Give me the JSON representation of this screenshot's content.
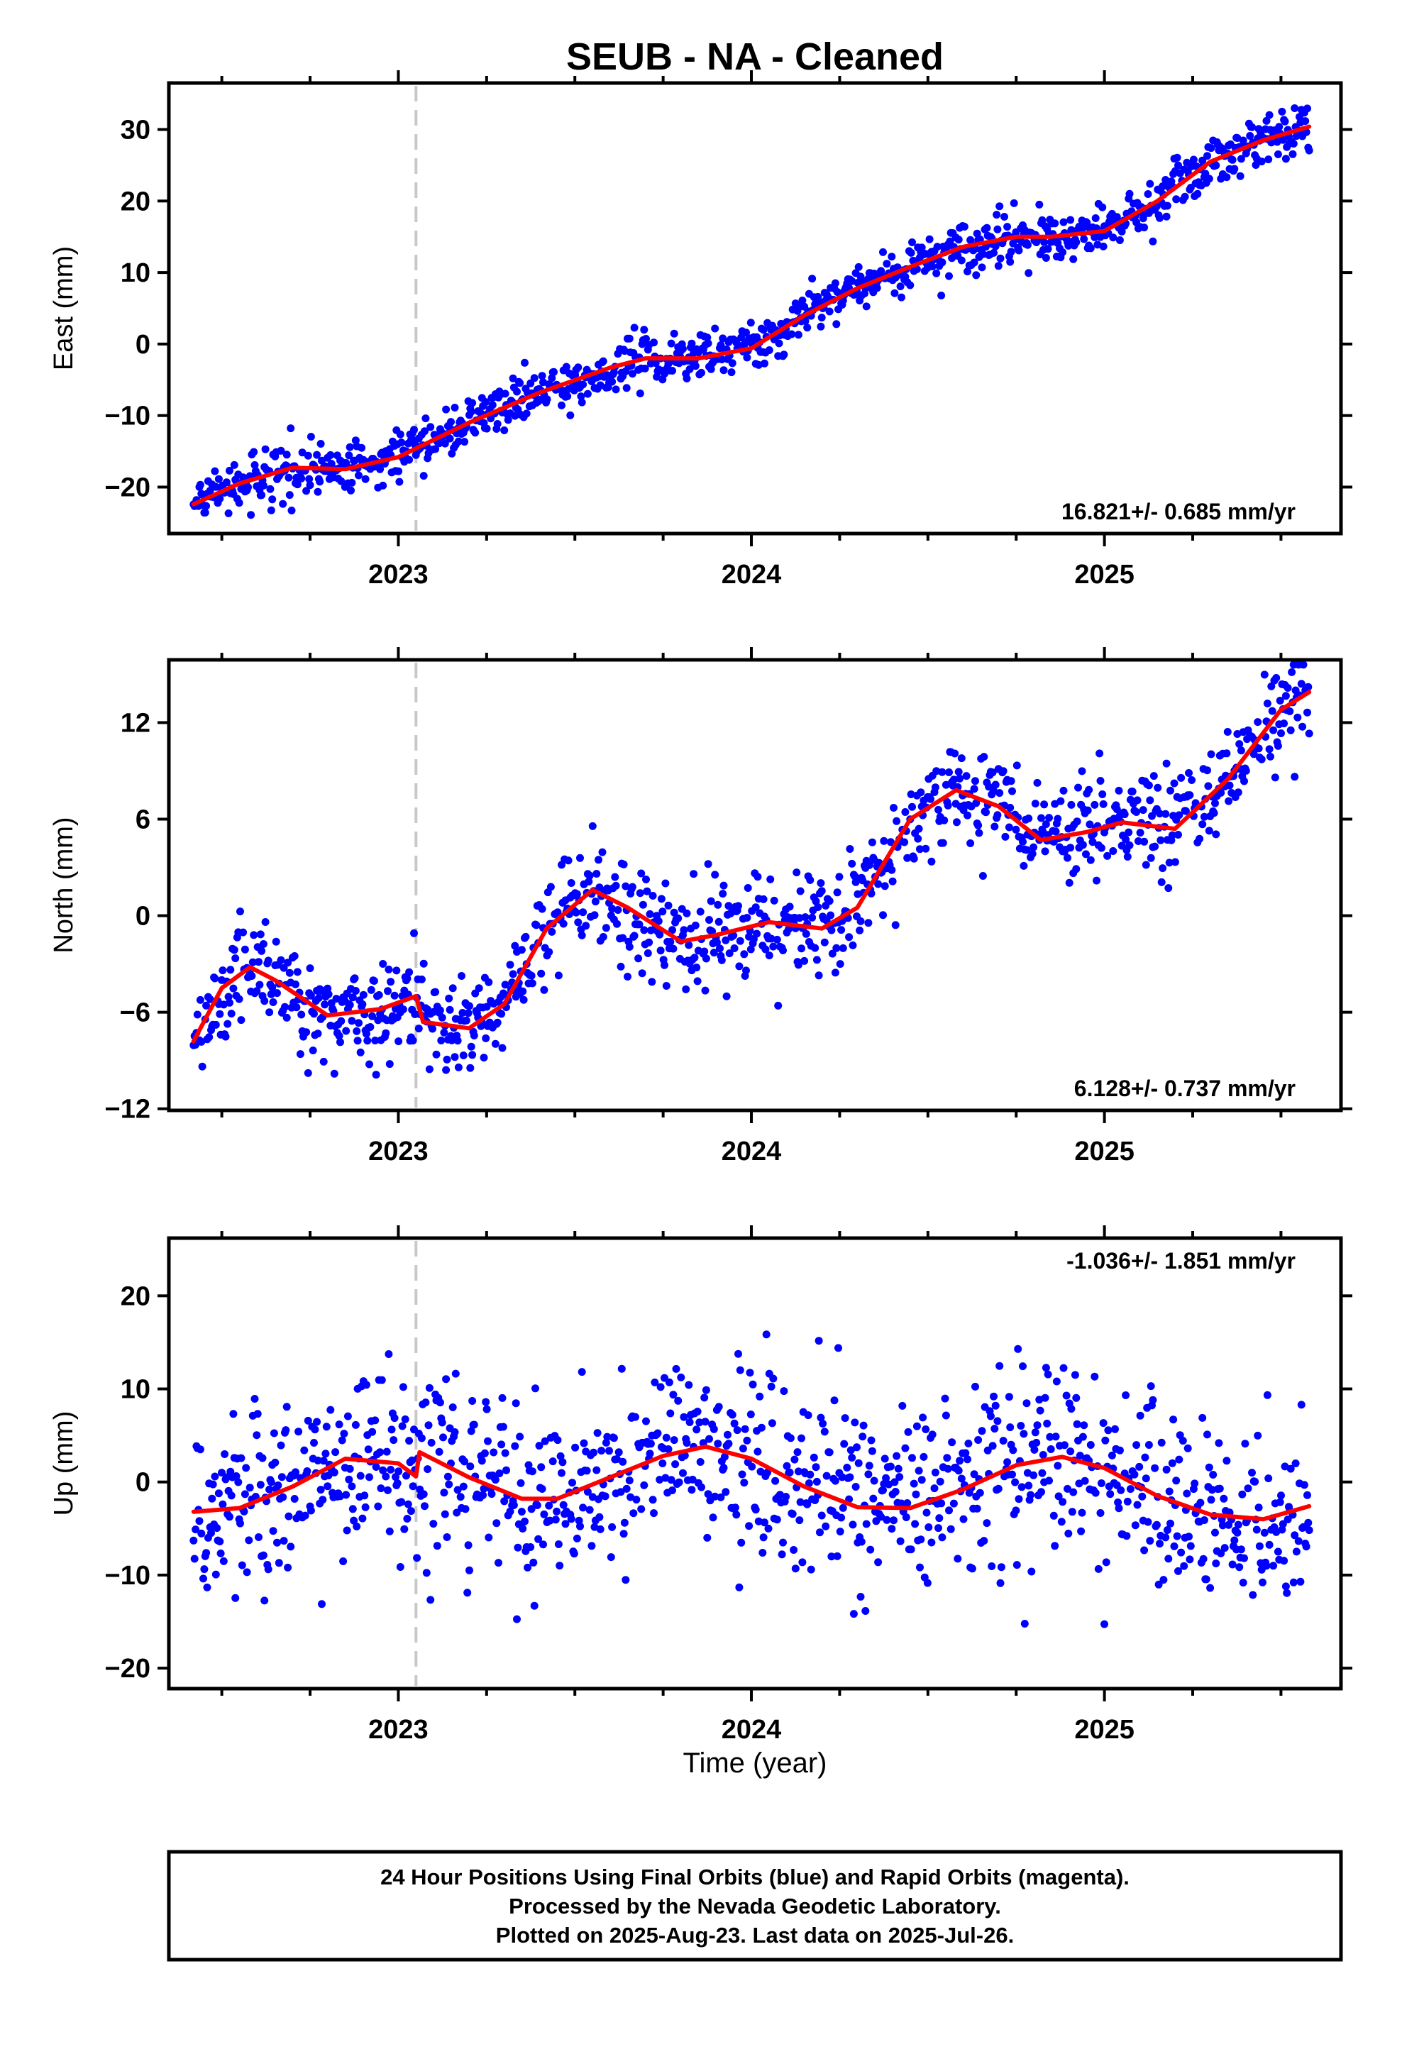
{
  "colors": {
    "final_orbits": "#0000ff",
    "rapid_orbits": "#ff00ff",
    "model_curve": "#ff0000",
    "equipment_change_line": "#c8c8c8",
    "axes": "#000000"
  },
  "chart_data": [
    {
      "type": "scatter",
      "title": "SEUB  - NA - Cleaned",
      "ylabel": "East (mm)",
      "xlabel": "",
      "xlim": [
        2022.35,
        2025.67
      ],
      "ylim": [
        -26.5,
        36.5
      ],
      "x_ticks": [
        {
          "value": 2023,
          "label": "2023"
        },
        {
          "value": 2024,
          "label": "2024"
        },
        {
          "value": 2025,
          "label": "2025"
        }
      ],
      "y_ticks": [
        {
          "value": -20,
          "label": "−20"
        },
        {
          "value": -10,
          "label": "−10"
        },
        {
          "value": 0,
          "label": "0"
        },
        {
          "value": 10,
          "label": "10"
        },
        {
          "value": 20,
          "label": "20"
        },
        {
          "value": 30,
          "label": "30"
        }
      ],
      "grid": false,
      "equipment_change_x": 2023.05,
      "rate_text": "16.821+/- 0.685 mm/yr",
      "rate_text_position": "bottom-right",
      "series": [
        {
          "kind": "points",
          "color": "blue",
          "x_start": 2022.42,
          "x_end": 2025.58,
          "trend_rate": 16.821,
          "offset_at_start": -22.4,
          "annual_amplitude": 2.1,
          "scatter_sd": 1.7
        },
        {
          "kind": "line",
          "color": "red",
          "x": [
            2022.42,
            2022.55,
            2022.7,
            2022.85,
            2023.0,
            2023.05,
            2023.2,
            2023.4,
            2023.6,
            2023.7,
            2023.85,
            2024.0,
            2024.15,
            2024.3,
            2024.45,
            2024.6,
            2024.75,
            2024.85,
            2025.0,
            2025.15,
            2025.3,
            2025.45,
            2025.58
          ],
          "y": [
            -22.4,
            -19.5,
            -17.3,
            -17.5,
            -15.8,
            -14.6,
            -11.0,
            -6.8,
            -3.3,
            -2.0,
            -2.0,
            -0.6,
            4.0,
            7.8,
            10.8,
            13.6,
            15.0,
            15.0,
            15.8,
            20.0,
            25.5,
            28.5,
            30.4
          ]
        }
      ]
    },
    {
      "type": "scatter",
      "title": "",
      "ylabel": "North (mm)",
      "xlabel": "",
      "xlim": [
        2022.35,
        2025.67
      ],
      "ylim": [
        -12.1,
        15.9
      ],
      "x_ticks": [
        {
          "value": 2023,
          "label": "2023"
        },
        {
          "value": 2024,
          "label": "2024"
        },
        {
          "value": 2025,
          "label": "2025"
        }
      ],
      "y_ticks": [
        {
          "value": -12,
          "label": "−12"
        },
        {
          "value": -6,
          "label": "−6"
        },
        {
          "value": 0,
          "label": "0"
        },
        {
          "value": 6,
          "label": "6"
        },
        {
          "value": 12,
          "label": "12"
        }
      ],
      "grid": false,
      "equipment_change_x": 2023.05,
      "rate_text": "6.128+/- 0.737 mm/yr",
      "rate_text_position": "bottom-right",
      "series": [
        {
          "kind": "points",
          "color": "blue",
          "x_start": 2022.42,
          "x_end": 2025.58,
          "trend_rate": 6.128,
          "offset_at_start": -7.8,
          "annual_amplitude": 2.5,
          "scatter_sd": 1.6
        },
        {
          "kind": "line",
          "color": "red",
          "x": [
            2022.42,
            2022.5,
            2022.58,
            2022.65,
            2022.8,
            2022.95,
            2023.05,
            2023.07,
            2023.2,
            2023.3,
            2023.42,
            2023.55,
            2023.65,
            2023.8,
            2023.9,
            2024.05,
            2024.2,
            2024.3,
            2024.45,
            2024.58,
            2024.7,
            2024.82,
            2024.95,
            2025.05,
            2025.2,
            2025.35,
            2025.5,
            2025.58
          ],
          "y": [
            -7.8,
            -4.5,
            -3.2,
            -4.0,
            -6.2,
            -5.8,
            -5.0,
            -6.6,
            -7.0,
            -5.5,
            -0.8,
            1.6,
            0.5,
            -1.6,
            -1.2,
            -0.4,
            -0.8,
            0.5,
            6.0,
            7.8,
            6.8,
            4.7,
            5.2,
            5.8,
            5.4,
            8.5,
            12.8,
            13.9
          ]
        }
      ]
    },
    {
      "type": "scatter",
      "title": "",
      "ylabel": "Up (mm)",
      "xlabel": "Time (year)",
      "xlim": [
        2022.35,
        2025.67
      ],
      "ylim": [
        -22.2,
        26.2
      ],
      "x_ticks": [
        {
          "value": 2023,
          "label": "2023"
        },
        {
          "value": 2024,
          "label": "2024"
        },
        {
          "value": 2025,
          "label": "2025"
        }
      ],
      "y_ticks": [
        {
          "value": -20,
          "label": "−20"
        },
        {
          "value": -10,
          "label": "−10"
        },
        {
          "value": 0,
          "label": "0"
        },
        {
          "value": 10,
          "label": "10"
        },
        {
          "value": 20,
          "label": "20"
        }
      ],
      "grid": false,
      "equipment_change_x": 2023.05,
      "rate_text": "-1.036+/- 1.851 mm/yr",
      "rate_text_position": "top-right",
      "series": [
        {
          "kind": "points",
          "color": "blue",
          "x_start": 2022.42,
          "x_end": 2025.58,
          "trend_rate": -1.036,
          "offset_at_start": 0.0,
          "annual_amplitude": 3.2,
          "scatter_sd": 5.0
        },
        {
          "kind": "line",
          "color": "red",
          "x": [
            2022.42,
            2022.55,
            2022.7,
            2022.85,
            2023.0,
            2023.05,
            2023.06,
            2023.2,
            2023.35,
            2023.45,
            2023.6,
            2023.75,
            2023.87,
            2024.0,
            2024.15,
            2024.3,
            2024.45,
            2024.6,
            2024.75,
            2024.88,
            2025.0,
            2025.15,
            2025.3,
            2025.45,
            2025.58
          ],
          "y": [
            -3.2,
            -2.8,
            -0.5,
            2.5,
            2.0,
            0.6,
            3.2,
            0.5,
            -1.8,
            -1.8,
            0.5,
            2.8,
            3.8,
            2.5,
            -0.5,
            -2.7,
            -2.8,
            -0.8,
            1.8,
            2.7,
            1.5,
            -1.5,
            -3.5,
            -4.0,
            -2.6
          ]
        }
      ]
    }
  ],
  "footer": {
    "line1": "24 Hour Positions Using Final Orbits (blue) and Rapid Orbits (magenta).",
    "line2": "Processed by the Nevada Geodetic Laboratory.",
    "line3": "Plotted on 2025-Aug-23. Last data on 2025-Jul-26."
  }
}
